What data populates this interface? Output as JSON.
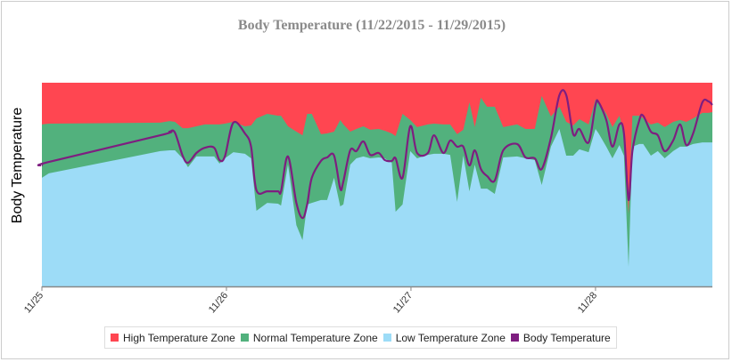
{
  "chart_data": {
    "type": "area",
    "title": "Body Temperature (11/22/2015 - 11/29/2015)",
    "xlabel": "",
    "ylabel": "Body Temperature",
    "x_unit": "hours since 11/25 00:00",
    "xlim": [
      0,
      87.2
    ],
    "ylim": [
      0,
      100
    ],
    "y_unit": "relative (no axis ticks shown)",
    "grid": false,
    "legend_position": "bottom",
    "x_ticks": [
      {
        "value": 0,
        "label": "11/25"
      },
      {
        "value": 24,
        "label": "11/26"
      },
      {
        "value": 48,
        "label": "11/27"
      },
      {
        "value": 72,
        "label": "11/28"
      }
    ],
    "x": [
      0,
      0.9,
      15.4,
      16.6,
      17.3,
      18.3,
      19.0,
      20.1,
      21.2,
      22.4,
      23.1,
      23.8,
      24.9,
      26.4,
      27.2,
      27.9,
      29.3,
      30.7,
      31.1,
      32.0,
      33.1,
      33.9,
      34.5,
      35.1,
      36.3,
      37.1,
      38.0,
      38.8,
      39.2,
      40.1,
      40.9,
      41.8,
      42.7,
      43.8,
      44.6,
      45.5,
      46.0,
      46.9,
      47.9,
      48.8,
      50.2,
      51.0,
      52.2,
      53.1,
      54.0,
      54.8,
      55.6,
      56.3,
      57.1,
      57.9,
      58.9,
      60.0,
      61.8,
      62.9,
      64.1,
      65.0,
      66.2,
      67.3,
      68.2,
      69.1,
      69.9,
      71.1,
      72.0,
      72.4,
      73.4,
      74.2,
      75.1,
      75.7,
      76.3,
      76.8,
      77.7,
      78.2,
      79.2,
      80.1,
      81.0,
      82.1,
      83.0,
      83.8,
      84.7,
      85.9,
      86.7,
      87.2
    ],
    "series": [
      {
        "name": "High Temperature Zone",
        "color": "#ff4651",
        "kind": "area",
        "values": "fills from Normal Temperature Zone upper bound to 100"
      },
      {
        "name": "Normal Temperature Zone",
        "color": "#52b17d",
        "kind": "area",
        "values": [
          79.5,
          79.9,
          80.4,
          81.2,
          80.8,
          77.7,
          77.7,
          78.6,
          79.5,
          79.5,
          79.5,
          79.9,
          80.8,
          78.6,
          79.0,
          82.5,
          84.7,
          83.8,
          83.8,
          78.6,
          76.0,
          74.2,
          84.7,
          84.7,
          74.7,
          75.1,
          76.0,
          81.7,
          79.5,
          76.0,
          77.3,
          78.6,
          76.9,
          77.3,
          76.4,
          75.1,
          73.8,
          84.7,
          81.7,
          78.2,
          79.5,
          79.9,
          79.5,
          79.5,
          74.7,
          76.9,
          90.4,
          78.2,
          92.6,
          88.2,
          88.2,
          78.2,
          79.5,
          77.3,
          77.3,
          93.5,
          83.4,
          88.2,
          80.8,
          79.0,
          82.1,
          79.5,
          91.7,
          90.4,
          84.7,
          78.2,
          83.8,
          75.1,
          35.8,
          83.8,
          83.8,
          82.5,
          79.5,
          80.4,
          78.2,
          80.8,
          81.7,
          80.8,
          82.5,
          85.2,
          85.2,
          85.6
        ]
      },
      {
        "name": "Low Temperature Zone",
        "color": "#9ddcf7",
        "kind": "area",
        "values": [
          53.3,
          55.5,
          66.4,
          66.8,
          66.8,
          62.9,
          58.5,
          63.8,
          63.8,
          63.8,
          60.3,
          62.9,
          65.9,
          65.1,
          62.9,
          37.1,
          41.0,
          40.6,
          39.7,
          59.8,
          30.1,
          22.7,
          40.2,
          41.0,
          42.4,
          42.4,
          53.3,
          39.3,
          40.2,
          59.8,
          62.9,
          63.8,
          62.9,
          63.3,
          62.9,
          60.7,
          36.7,
          40.2,
          66.4,
          62.9,
          64.6,
          65.1,
          65.1,
          64.6,
          41.5,
          64.2,
          46.7,
          59.8,
          48.0,
          48.0,
          45.4,
          63.3,
          63.8,
          62.9,
          62.0,
          49.8,
          68.6,
          77.3,
          64.2,
          64.2,
          67.3,
          65.9,
          77.3,
          75.1,
          68.6,
          62.9,
          69.4,
          64.2,
          9.6,
          68.6,
          69.9,
          69.9,
          64.2,
          66.4,
          62.9,
          66.4,
          68.6,
          68.6,
          69.9,
          70.7,
          70.7,
          70.7
        ]
      },
      {
        "name": "Body Temperature",
        "color": "#7e1e80",
        "kind": "line",
        "values": [
          59.4,
          61.1,
          74.2,
          76.0,
          75.5,
          64.2,
          60.7,
          65.5,
          68.1,
          68.1,
          62.0,
          63.8,
          80.4,
          75.1,
          68.6,
          47.2,
          46.7,
          46.7,
          46.7,
          63.8,
          41.0,
          33.6,
          40.2,
          53.3,
          61.6,
          63.3,
          64.2,
          48.0,
          51.5,
          66.8,
          66.4,
          71.2,
          64.6,
          65.5,
          62.0,
          61.6,
          62.9,
          53.3,
          78.6,
          65.5,
          65.5,
          74.2,
          65.5,
          71.6,
          68.6,
          68.6,
          59.4,
          66.8,
          57.6,
          54.2,
          52.0,
          66.8,
          69.9,
          63.3,
          62.9,
          57.6,
          72.9,
          93.9,
          93.9,
          74.7,
          77.3,
          70.7,
          89.1,
          90.4,
          81.7,
          68.6,
          79.5,
          75.1,
          42.4,
          66.4,
          81.7,
          83.8,
          76.0,
          74.2,
          66.4,
          71.6,
          79.5,
          69.4,
          75.1,
          90.4,
          90.8,
          89.1
        ]
      }
    ]
  }
}
